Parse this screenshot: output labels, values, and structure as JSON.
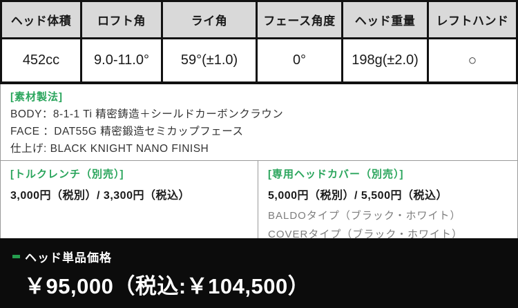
{
  "colors": {
    "accent_green": "#2aa55c",
    "bullet_green": "#259d4e",
    "header_bg": "#d9d9d9",
    "table_border": "#111111",
    "section_border": "#9a9a9a",
    "price_bar_bg": "#0c0c0c"
  },
  "spec_table": {
    "columns": [
      {
        "header": "ヘッド体積",
        "value": "452cc"
      },
      {
        "header": "ロフト角",
        "value": "9.0-11.0°"
      },
      {
        "header": "ライ角",
        "value": "59°(±1.0)"
      },
      {
        "header": "フェース角度",
        "value": "0°"
      },
      {
        "header": "ヘッド重量",
        "value": "198g(±2.0)"
      },
      {
        "header": "レフトハンド",
        "value": "○"
      }
    ]
  },
  "material_section": {
    "label": "[素材製法]",
    "lines": [
      "BODY：8-1-1 Ti 精密鋳造＋シールドカーボンクラウン",
      "FACE ：DAT55G 精密鍛造セミカップフェース",
      "仕上げ: BLACK KNIGHT NANO FINISH"
    ]
  },
  "torque_wrench_section": {
    "label": "[トルクレンチ（別売）]",
    "price": "3,000円（税別）/ 3,300円（税込）"
  },
  "headcover_section": {
    "label": "[専用ヘッドカバー（別売）]",
    "price": "5,000円（税別）/ 5,500円（税込）",
    "options": [
      "BALDOタイプ（ブラック・ホワイト）",
      "COVERタイプ（ブラック・ホワイト）"
    ]
  },
  "price_bar": {
    "label": "ヘッド単品価格",
    "price": "￥95,000（税込:￥104,500）"
  }
}
